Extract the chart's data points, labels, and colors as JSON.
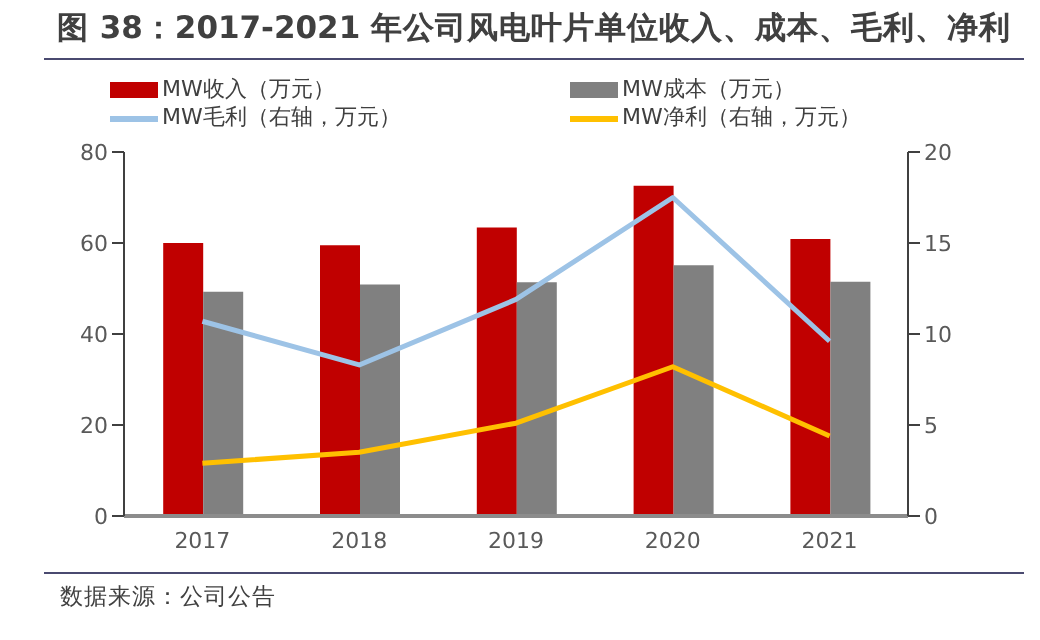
{
  "chart_data": {
    "type": "bar",
    "title": "图 38：2017-2021 年公司风电叶片单位收入、成本、毛利、净利",
    "categories": [
      "2017",
      "2018",
      "2019",
      "2020",
      "2021"
    ],
    "series": [
      {
        "name": "MW收入（万元）",
        "color": "#c00000",
        "values": [
          60,
          59.5,
          63.4,
          72.6,
          60.9
        ]
      },
      {
        "name": "MW成本（万元）",
        "color": "#808080",
        "values": [
          49.3,
          50.9,
          51.4,
          55.1,
          51.5
        ]
      },
      {
        "name": "MW毛利（右轴，万元）",
        "type": "line",
        "axis": "y2",
        "color": "#9dc3e6",
        "values": [
          10.7,
          8.3,
          11.9,
          17.5,
          9.6
        ]
      },
      {
        "name": "MW净利（右轴，万元）",
        "type": "line",
        "axis": "y2",
        "color": "#ffc000",
        "values": [
          2.9,
          3.5,
          5.1,
          8.2,
          4.4
        ]
      }
    ],
    "ylim": [
      0,
      80
    ],
    "yticks": [
      0,
      20,
      40,
      60,
      80
    ],
    "y2lim": [
      0,
      20
    ],
    "y2ticks": [
      0,
      5,
      10,
      15,
      20
    ],
    "grid": false,
    "legend": "top",
    "marker": "none",
    "line_style": "solid",
    "annotations": [
      "数据来源：公司公告"
    ]
  }
}
